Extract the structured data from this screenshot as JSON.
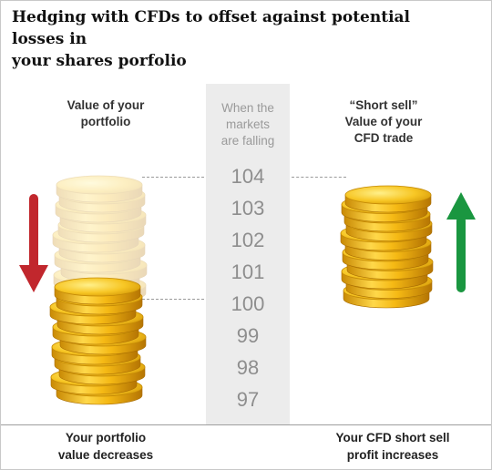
{
  "title": [
    "Hedging with CFDs to offset against potential losses in",
    "your shares porfolio"
  ],
  "left_label": [
    "Value of your",
    "portfolio"
  ],
  "right_label": [
    "“Short sell”",
    "Value of your",
    "CFD trade"
  ],
  "center_label": [
    "When the",
    "markets",
    "are falling"
  ],
  "scale": [
    "104",
    "103",
    "102",
    "101",
    "100",
    "99",
    "98",
    "97"
  ],
  "left_footer": [
    "Your portfolio",
    "value decreases"
  ],
  "right_footer": [
    "Your CFD short sell",
    "profit increases"
  ],
  "icons": {
    "left_arrow": "arrow-down-icon",
    "right_arrow": "arrow-up-icon"
  },
  "colors": {
    "down_arrow": "#c1272d",
    "up_arrow": "#1a9640",
    "coin_gold": "#f2c21b",
    "coin_edge": "#d99a06"
  }
}
